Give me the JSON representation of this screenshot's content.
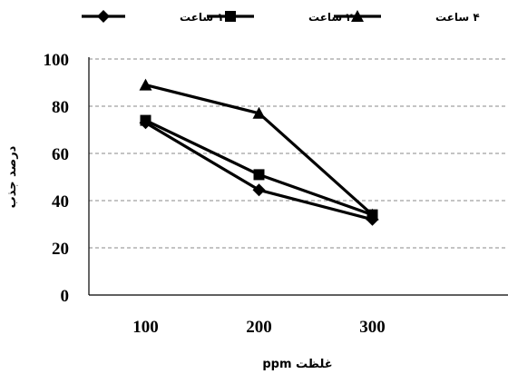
{
  "chart_data": {
    "type": "line",
    "x": [
      100,
      200,
      300
    ],
    "xlabel": "غلظت ppm",
    "ylabel": "درصد جذب",
    "ylim": [
      0,
      100
    ],
    "yticks": [
      0,
      20,
      40,
      60,
      80,
      100
    ],
    "grid": true,
    "legend_position": "top",
    "series": [
      {
        "name": "۱ ساعت",
        "marker": "diamond",
        "values": [
          73,
          44.5,
          32
        ]
      },
      {
        "name": "۲ ساعت",
        "marker": "square",
        "values": [
          74,
          51,
          34
        ]
      },
      {
        "name": "۴ ساعت",
        "marker": "triangle",
        "values": [
          89,
          77,
          34
        ]
      }
    ],
    "colors": {
      "line": "#000000",
      "grid": "#888888"
    }
  }
}
